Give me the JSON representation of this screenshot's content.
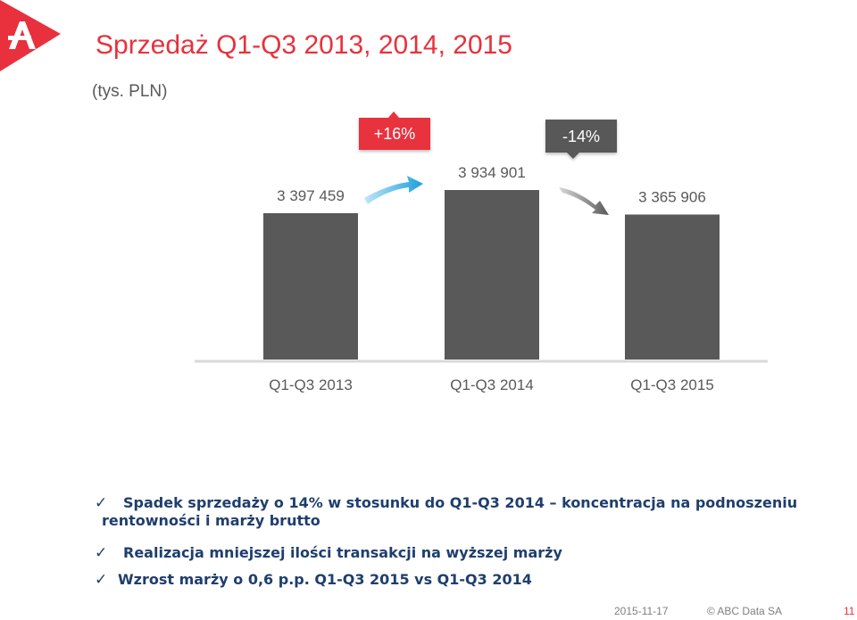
{
  "slide": {
    "title": "Sprzedaż Q1-Q3 2013, 2014, 2015",
    "unit": "(tys. PLN)"
  },
  "chart_data": {
    "type": "bar",
    "categories": [
      "Q1-Q3 2013",
      "Q1-Q3 2014",
      "Q1-Q3 2015"
    ],
    "values": [
      3397459,
      3934901,
      3365906
    ],
    "value_labels": [
      "3 397 459",
      "3 934 901",
      "3 365 906"
    ],
    "annotations": [
      {
        "from": "Q1-Q3 2013",
        "to": "Q1-Q3 2014",
        "label": "+16%",
        "color": "#e8313c",
        "direction": "up"
      },
      {
        "from": "Q1-Q3 2014",
        "to": "Q1-Q3 2015",
        "label": "-14%",
        "color": "#595959",
        "direction": "down"
      }
    ],
    "bar_color": "#595959",
    "axis_color": "#d9d9d9",
    "grid": false,
    "title": "",
    "xlabel": "",
    "ylabel": ""
  },
  "bullets": [
    {
      "icon": "check-icon",
      "text": "Spadek sprzedaży o 14% w stosunku do Q1-Q3 2014 – koncentracja na podnoszeniu",
      "text_cont": "rentowności i marży brutto"
    },
    {
      "icon": "check-icon",
      "text": "Realizacja mniejszej ilości transakcji na wyższej marży"
    },
    {
      "icon": "check-icon",
      "text": "Wzrost marży o 0,6 p.p. Q1-Q3 2015 vs Q1-Q3 2014"
    }
  ],
  "footer": {
    "date": "2015-11-17",
    "copyright": "© ABC Data SA",
    "page": "11"
  },
  "colors": {
    "accent": "#e8313c",
    "text_blue": "#1f3e6e",
    "bar": "#595959"
  }
}
